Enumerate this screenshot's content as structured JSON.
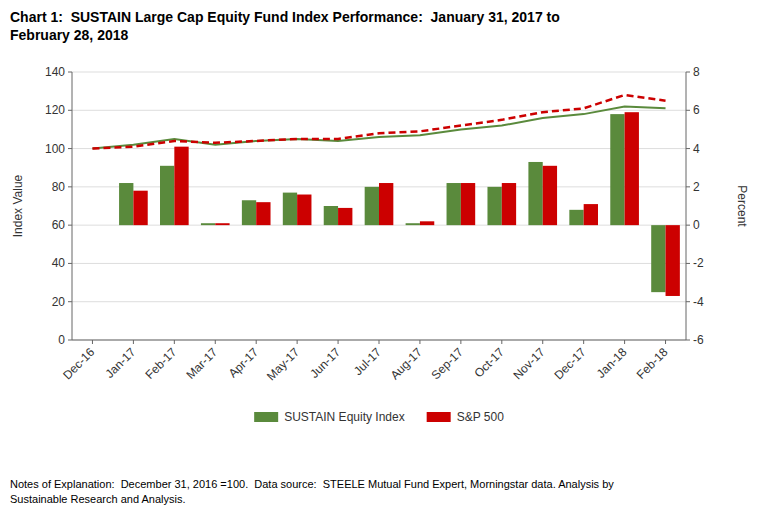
{
  "chart_data": {
    "type": "bar",
    "title": "Chart 1:  SUSTAIN Large Cap Equity Fund Index Performance:  January 31, 2017 to\nFebruary 28, 2018",
    "annotations": [
      "Notes of Explanation:  December 31, 2016 =100.  Data source:  STEELE Mutual Fund Expert, Morningstar data. Analysis by\nSustainable Research and Analysis."
    ],
    "y_label": "Index Value",
    "y2_label": "Percent",
    "categories": [
      "Dec-16",
      "Jan-17",
      "Feb-17",
      "Mar-17",
      "Apr-17",
      "May-17",
      "Jun-17",
      "Jul-17",
      "Aug-17",
      "Sep-17",
      "Oct-17",
      "Nov-17",
      "Dec-17",
      "Jan-18",
      "Feb-18"
    ],
    "series": [
      {
        "name": "SUSTAIN Equity Index",
        "type": "bar",
        "axis": "y2",
        "color": "#5a8a3c",
        "values": [
          0.0,
          2.2,
          3.1,
          0.1,
          1.3,
          1.7,
          1.0,
          2.0,
          0.1,
          2.2,
          2.0,
          3.3,
          0.8,
          5.8,
          -3.5
        ]
      },
      {
        "name": "S&P 500",
        "type": "bar",
        "axis": "y2",
        "color": "#cc0000",
        "values": [
          0.0,
          1.8,
          4.1,
          0.1,
          1.2,
          1.6,
          0.9,
          2.2,
          0.2,
          2.2,
          2.2,
          3.1,
          1.1,
          5.9,
          -3.7
        ]
      },
      {
        "type": "line",
        "color": "#5a8a3c",
        "line_style": "solid",
        "values": [
          100,
          102,
          105,
          102,
          104,
          105,
          104,
          106,
          107,
          110,
          112,
          116,
          118,
          122,
          121
        ]
      },
      {
        "type": "line",
        "color": "#cc0000",
        "line_style": "dashed",
        "values": [
          100,
          101,
          104,
          103,
          104,
          105,
          105,
          108,
          109,
          112,
          115,
          119,
          121,
          128,
          125
        ]
      }
    ],
    "ylim": [
      0,
      140
    ],
    "yticks": [
      0,
      20,
      40,
      60,
      80,
      100,
      120,
      140
    ],
    "y2lim": [
      -6,
      8
    ],
    "y2ticks": [
      -6,
      -4,
      -2,
      0,
      2,
      4,
      6,
      8
    ],
    "grid": true,
    "legend": "bottom"
  }
}
